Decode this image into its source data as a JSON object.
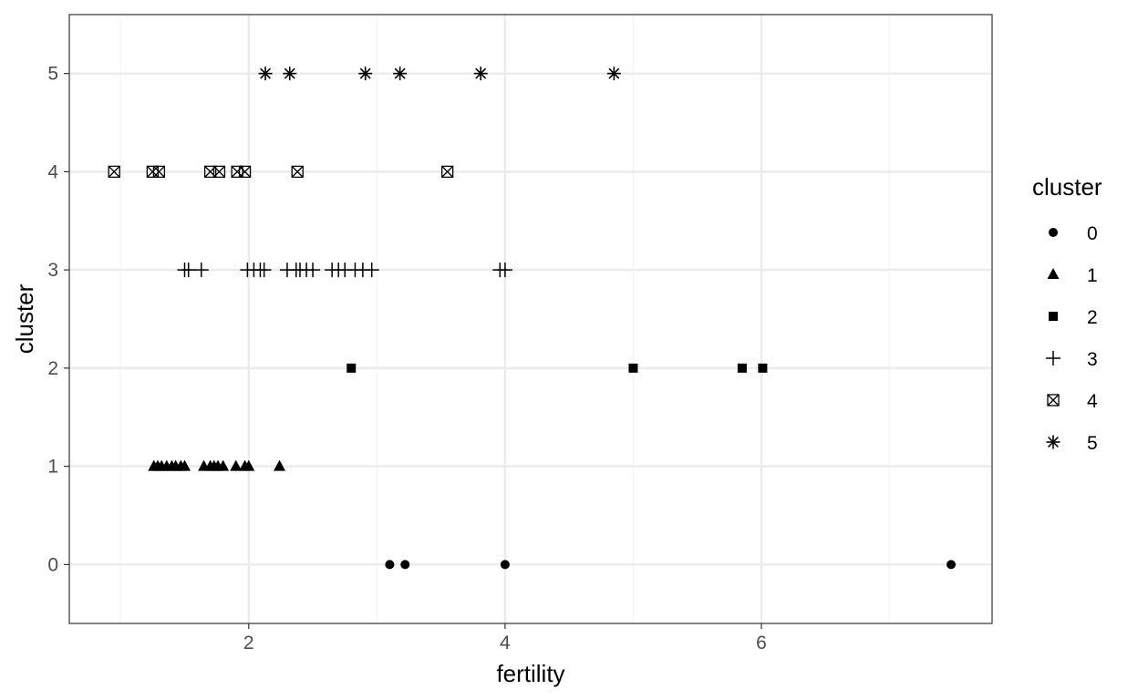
{
  "chart_data": {
    "type": "scatter",
    "xlabel": "fertility",
    "ylabel": "cluster",
    "xlim": [
      0.6,
      7.8
    ],
    "ylim": [
      -0.6,
      5.6
    ],
    "x_ticks": [
      2,
      4,
      6
    ],
    "x_minor_ticks": [
      1,
      3,
      5,
      7
    ],
    "y_ticks": [
      0,
      1,
      2,
      3,
      4,
      5
    ],
    "grid": true,
    "legend_position": "right",
    "colors": {
      "points": "#000000",
      "grid_major": "#ebebeb",
      "grid_minor": "#f4f4f4",
      "panel_border": "#333333"
    },
    "legend": {
      "title": "cluster",
      "entries": [
        {
          "label": "0",
          "shape": "circle"
        },
        {
          "label": "1",
          "shape": "triangle"
        },
        {
          "label": "2",
          "shape": "square"
        },
        {
          "label": "3",
          "shape": "plus"
        },
        {
          "label": "4",
          "shape": "square-cross"
        },
        {
          "label": "5",
          "shape": "asterisk"
        }
      ]
    },
    "series": [
      {
        "name": "0",
        "shape": "circle",
        "y": 0,
        "x": [
          3.1,
          3.22,
          4.0,
          7.48
        ]
      },
      {
        "name": "1",
        "shape": "triangle",
        "y": 1,
        "x": [
          1.26,
          1.29,
          1.32,
          1.36,
          1.4,
          1.43,
          1.47,
          1.5,
          1.65,
          1.7,
          1.73,
          1.76,
          1.8,
          1.9,
          1.97,
          2.0,
          2.24
        ]
      },
      {
        "name": "2",
        "shape": "square",
        "y": 2,
        "x": [
          2.8,
          5.0,
          5.85,
          6.01
        ]
      },
      {
        "name": "3",
        "shape": "plus",
        "y": 3,
        "x": [
          1.5,
          1.53,
          1.63,
          1.99,
          2.04,
          2.09,
          2.12,
          2.3,
          2.37,
          2.4,
          2.45,
          2.5,
          2.65,
          2.7,
          2.75,
          2.83,
          2.89,
          2.96,
          3.96,
          4.0
        ]
      },
      {
        "name": "4",
        "shape": "square-cross",
        "y": 4,
        "x": [
          0.95,
          1.25,
          1.3,
          1.7,
          1.77,
          1.91,
          1.97,
          2.38,
          3.55
        ]
      },
      {
        "name": "5",
        "shape": "asterisk",
        "y": 5,
        "x": [
          2.13,
          2.32,
          2.91,
          3.18,
          3.81,
          4.85
        ]
      }
    ]
  }
}
